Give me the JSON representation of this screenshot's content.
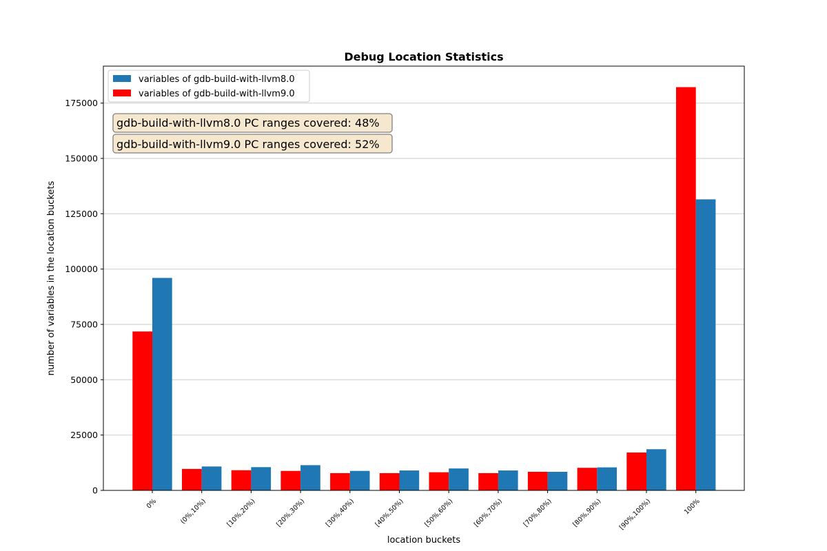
{
  "chart_data": {
    "type": "bar",
    "title": "Debug Location Statistics",
    "xlabel": "location buckets",
    "ylabel": "number of variables in the location buckets",
    "categories": [
      "0%",
      "(0%,10%)",
      "[10%,20%)",
      "[20%,30%)",
      "[30%,40%)",
      "[40%,50%)",
      "[50%,60%)",
      "[60%,70%)",
      "[70%,80%)",
      "[80%,90%)",
      "[90%,100%)",
      "100%"
    ],
    "series": [
      {
        "name": "variables of gdb-build-with-llvm8.0",
        "color": "#1f77b4",
        "values": [
          96000,
          10800,
          10500,
          11400,
          8800,
          9000,
          9900,
          9000,
          8400,
          10400,
          18600,
          131500
        ]
      },
      {
        "name": "variables of gdb-build-with-llvm9.0",
        "color": "#ff0000",
        "values": [
          71800,
          9700,
          9100,
          8800,
          7800,
          7800,
          8200,
          7800,
          8400,
          10200,
          17100,
          182200
        ]
      }
    ],
    "ylim": [
      0,
      191700
    ],
    "yticks": [
      0,
      25000,
      50000,
      75000,
      100000,
      125000,
      150000,
      175000
    ],
    "grid": "horizontal",
    "legend": "top-left",
    "annotations": [
      "gdb-build-with-llvm8.0 PC ranges covered: 48%",
      "gdb-build-with-llvm9.0 PC ranges covered: 52%"
    ]
  }
}
